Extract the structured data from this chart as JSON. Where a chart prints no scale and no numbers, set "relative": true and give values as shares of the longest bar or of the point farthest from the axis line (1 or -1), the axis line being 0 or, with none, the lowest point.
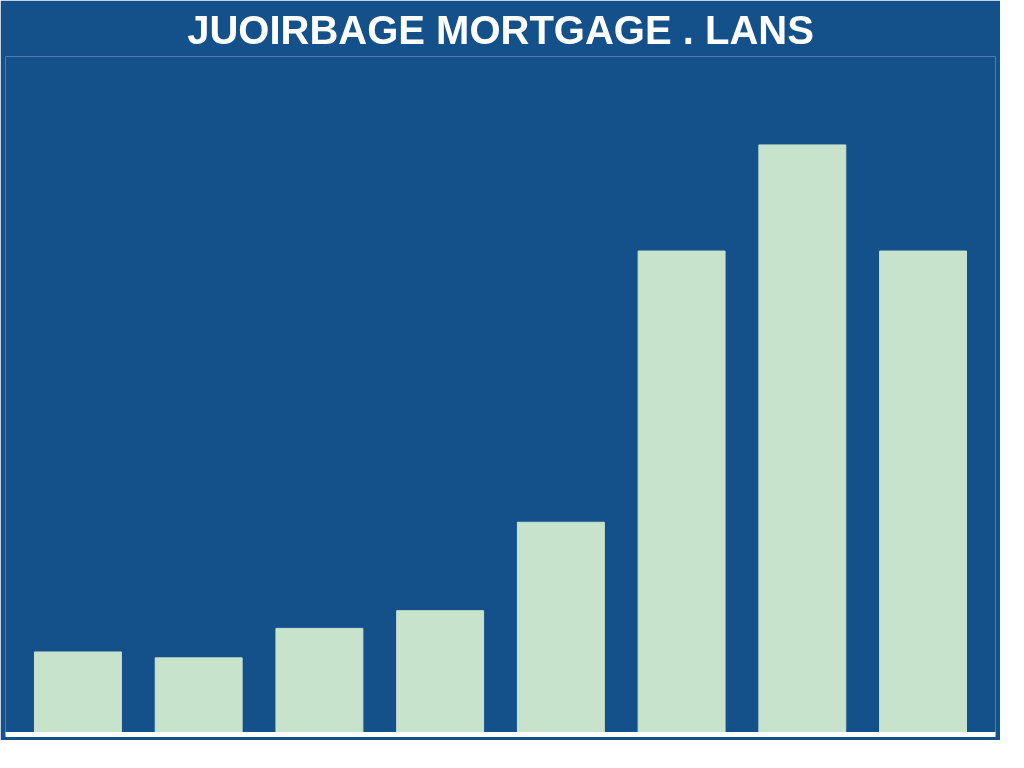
{
  "chart_data": {
    "type": "bar",
    "title": "JUOIRBAGE MORTGAGE . LANS",
    "relative": true,
    "grid": false,
    "categories": [
      null,
      null,
      null,
      null,
      null,
      null,
      null,
      null
    ],
    "values": [
      0.14,
      0.13,
      0.18,
      0.21,
      0.36,
      0.82,
      1,
      0.82
    ],
    "color": "#c8e3cc"
  }
}
